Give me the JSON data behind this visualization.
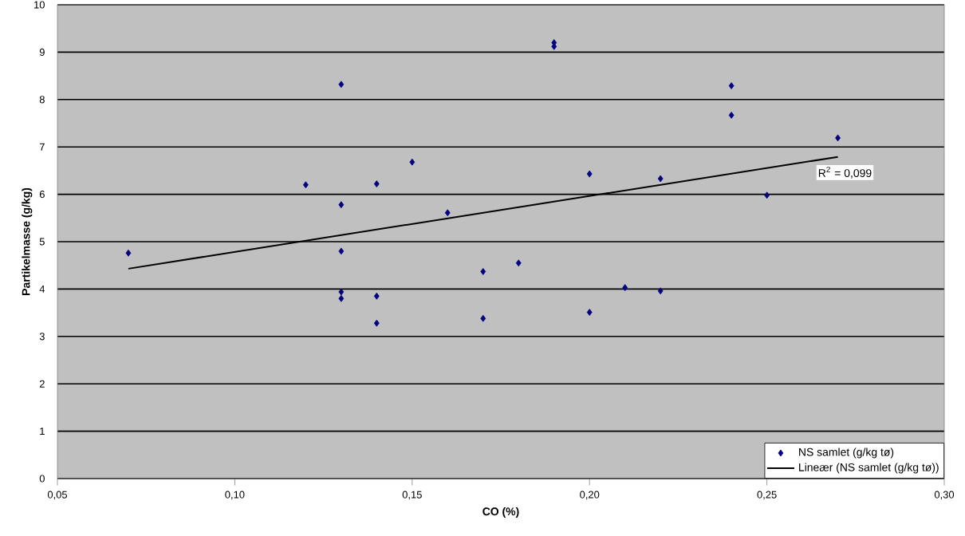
{
  "chart_data": {
    "type": "scatter",
    "xlabel": "CO (%)",
    "ylabel": "Partikelmasse (g/kg)",
    "xlim": [
      0.05,
      0.3
    ],
    "ylim": [
      0,
      10
    ],
    "xticks": [
      {
        "value": 0.05,
        "label": "0,05"
      },
      {
        "value": 0.1,
        "label": "0,10"
      },
      {
        "value": 0.15,
        "label": "0,15"
      },
      {
        "value": 0.2,
        "label": "0,20"
      },
      {
        "value": 0.25,
        "label": "0,25"
      },
      {
        "value": 0.3,
        "label": "0,30"
      }
    ],
    "yticks": [
      0,
      1,
      2,
      3,
      4,
      5,
      6,
      7,
      8,
      9,
      10
    ],
    "grid": "y",
    "legend": "bottom right",
    "series": [
      {
        "name": "NS samlet (g/kg tø)",
        "color": "#000080",
        "marker": "diamond",
        "x": [
          0.07,
          0.12,
          0.13,
          0.13,
          0.13,
          0.13,
          0.13,
          0.14,
          0.14,
          0.14,
          0.15,
          0.16,
          0.17,
          0.17,
          0.18,
          0.19,
          0.19,
          0.2,
          0.2,
          0.21,
          0.22,
          0.22,
          0.24,
          0.24,
          0.25,
          0.27
        ],
        "values": [
          4.76,
          6.2,
          8.32,
          5.78,
          4.8,
          3.94,
          3.8,
          6.22,
          3.85,
          3.28,
          6.68,
          5.61,
          4.37,
          3.38,
          4.55,
          9.2,
          9.12,
          6.43,
          3.51,
          4.03,
          6.33,
          3.96,
          8.29,
          7.67,
          5.98,
          7.19
        ]
      },
      {
        "name": "Lineær (NS samlet (g/kg tø))",
        "type": "line",
        "color": "#000000",
        "marker": "none",
        "line_style": "solid",
        "x": [
          0.07,
          0.27
        ],
        "values": [
          4.43,
          6.79
        ]
      }
    ],
    "annotations": [
      "R$^{2}$ = 0,099"
    ]
  }
}
